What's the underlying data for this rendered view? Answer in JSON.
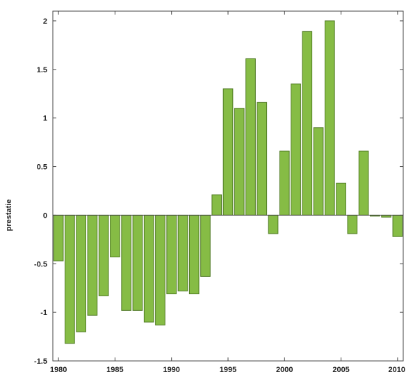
{
  "chart_data": {
    "type": "bar",
    "title": "",
    "xlabel": "",
    "ylabel": "prestatie",
    "ylim": [
      -1.5,
      2.1
    ],
    "xlim": [
      1979.5,
      2010.5
    ],
    "y_ticks": [
      -1.5,
      -1,
      -0.5,
      0,
      0.5,
      1,
      1.5,
      2
    ],
    "y_tick_labels": [
      "-1.5",
      "-1",
      "-0.5",
      "0",
      "0.5",
      "1",
      "1.5",
      "2"
    ],
    "x_ticks": [
      1980,
      1985,
      1990,
      1995,
      2000,
      2005,
      2010
    ],
    "x_tick_labels": [
      "1980",
      "1985",
      "1990",
      "1995",
      "2000",
      "2005",
      "2010"
    ],
    "grid": false,
    "legend": "none",
    "bar_color": "#86bc45",
    "bar_edge_color": "#4f7a23",
    "x": [
      1980,
      1981,
      1982,
      1983,
      1984,
      1985,
      1986,
      1987,
      1988,
      1989,
      1990,
      1991,
      1992,
      1993,
      1994,
      1995,
      1996,
      1997,
      1998,
      1999,
      2000,
      2001,
      2002,
      2003,
      2004,
      2005,
      2006,
      2007,
      2008,
      2009,
      2010
    ],
    "values": [
      -0.47,
      -1.32,
      -1.2,
      -1.03,
      -0.83,
      -0.43,
      -0.98,
      -0.98,
      -1.1,
      -1.13,
      -0.81,
      -0.78,
      -0.81,
      -0.63,
      0.21,
      1.3,
      1.1,
      1.61,
      1.16,
      -0.19,
      0.66,
      1.35,
      1.89,
      0.9,
      2.0,
      0.33,
      -0.19,
      0.66,
      -0.01,
      -0.02,
      -0.22
    ]
  }
}
